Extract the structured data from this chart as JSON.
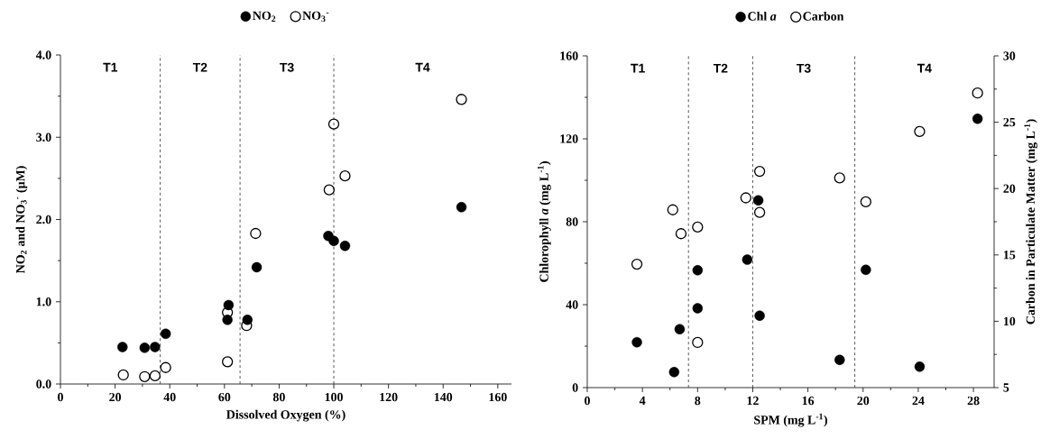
{
  "chart_data": [
    {
      "type": "scatter",
      "xlabel": "Dissolved Oxygen (%)",
      "ylabel": "NO$_{2}$ and NO$_{3}$$^{-}$ (μM)",
      "legend": "top",
      "xlim": [
        0,
        165
      ],
      "xticks": [
        0,
        20,
        40,
        60,
        80,
        100,
        120,
        140,
        160
      ],
      "ylim": [
        0,
        4
      ],
      "yticks": [
        {
          "value": 0,
          "label": "0.0"
        },
        {
          "value": 1,
          "label": "1.0"
        },
        {
          "value": 2,
          "label": "2.0"
        },
        {
          "value": 3,
          "label": "3.0"
        },
        {
          "value": 4,
          "label": "4.0"
        }
      ],
      "ref_lines": [
        {
          "axis": "x",
          "value": 36.5,
          "color": "#444444",
          "line_style": "dashed"
        },
        {
          "axis": "x",
          "value": 65.7,
          "color": "#444444",
          "line_style": "dashed"
        },
        {
          "axis": "x",
          "value": 100,
          "color": "#444444",
          "line_style": "dashed"
        }
      ],
      "annotations": [
        "T1",
        "T2",
        "T3",
        "T4"
      ],
      "series": [
        {
          "name": "NO$_{2}$",
          "color": "#000000",
          "marker": "circle",
          "x": [
            22.7,
            30.8,
            34.6,
            38.5,
            61.1,
            61.5,
            68.4,
            71.8,
            98.0,
            100,
            104.1,
            146.7
          ],
          "values": [
            0.45,
            0.44,
            0.45,
            0.61,
            0.78,
            0.96,
            0.78,
            1.42,
            1.8,
            1.74,
            1.68,
            2.15
          ]
        },
        {
          "name": "NO$_{3}$$^{-}$",
          "color": "#000000",
          "marker": "open circle",
          "x": [
            23.0,
            30.8,
            34.6,
            38.5,
            61.1,
            61.1,
            68.1,
            71.4,
            98.3,
            100,
            104.1,
            146.7
          ],
          "values": [
            0.11,
            0.09,
            0.1,
            0.2,
            0.27,
            0.87,
            0.71,
            1.83,
            2.36,
            3.16,
            2.53,
            3.46
          ]
        }
      ]
    },
    {
      "type": "scatter",
      "xlabel": "SPM (mg L$^{-1}$)",
      "ylabel": "Chlorophyll *a* (mg L$^{-1}$)",
      "y2label": "Carbon in Particulate Matter (mg L$^{-1}$)",
      "legend": "top",
      "xlim": [
        0,
        29.5
      ],
      "xticks": [
        0,
        4,
        8,
        12,
        16,
        20,
        24,
        28
      ],
      "ylim": [
        0,
        160
      ],
      "yticks": [
        0,
        40,
        80,
        120,
        160
      ],
      "y2lim": [
        5,
        30
      ],
      "y2ticks": [
        5,
        10,
        15,
        20,
        25,
        30
      ],
      "ref_lines": [
        {
          "axis": "x",
          "value": 7.34,
          "color": "#444444",
          "line_style": "dashed"
        },
        {
          "axis": "x",
          "value": 12.0,
          "color": "#444444",
          "line_style": "dashed"
        },
        {
          "axis": "x",
          "value": 19.4,
          "color": "#444444",
          "line_style": "dashed"
        }
      ],
      "annotations": [
        "T1",
        "T2",
        "T3",
        "T4"
      ],
      "series": [
        {
          "name": "Chl *a*",
          "color": "#000000",
          "marker": "circle",
          "x": [
            3.6,
            6.3,
            6.7,
            8.0,
            8.0,
            11.6,
            12.4,
            12.5,
            18.3,
            20.2,
            24.1,
            28.3
          ],
          "values": [
            21.9,
            7.5,
            28.2,
            38.3,
            56.6,
            61.7,
            90.3,
            34.7,
            13.4,
            56.8,
            10.1,
            129.7
          ]
        },
        {
          "name": "Carbon",
          "color": "#000000",
          "marker": "open circle",
          "axis": "y2",
          "x": [
            3.6,
            6.2,
            6.8,
            8.0,
            8.0,
            11.5,
            12.5,
            12.5,
            18.3,
            20.2,
            24.1,
            28.3
          ],
          "values": [
            14.3,
            18.4,
            16.6,
            17.1,
            8.4,
            19.3,
            21.3,
            18.2,
            20.8,
            19.0,
            24.3,
            27.2
          ]
        }
      ]
    }
  ]
}
